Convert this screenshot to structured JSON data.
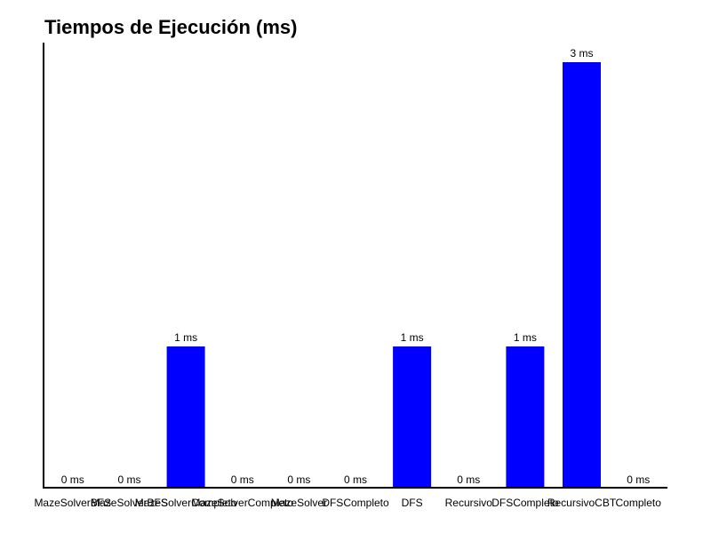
{
  "chart_data": {
    "type": "bar",
    "title": "Tiempos de Ejecución (ms)",
    "xlabel": "",
    "ylabel": "",
    "categories": [
      "MazeSolverBFS",
      "MazeSolverBFS",
      "MazeSolverCompleto",
      "MazeSolverCompleto",
      "MazeSolver",
      "DFSCompleto",
      "DFS",
      "Recursivo",
      "DFSCompleto",
      "RecursivoCBT",
      "Completo"
    ],
    "values": [
      0,
      0,
      1,
      0,
      0,
      0,
      1,
      0,
      1,
      3,
      0
    ],
    "value_suffix": " ms",
    "ylim": [
      0,
      3
    ],
    "grid": false,
    "bar_color": "#0000ff"
  }
}
